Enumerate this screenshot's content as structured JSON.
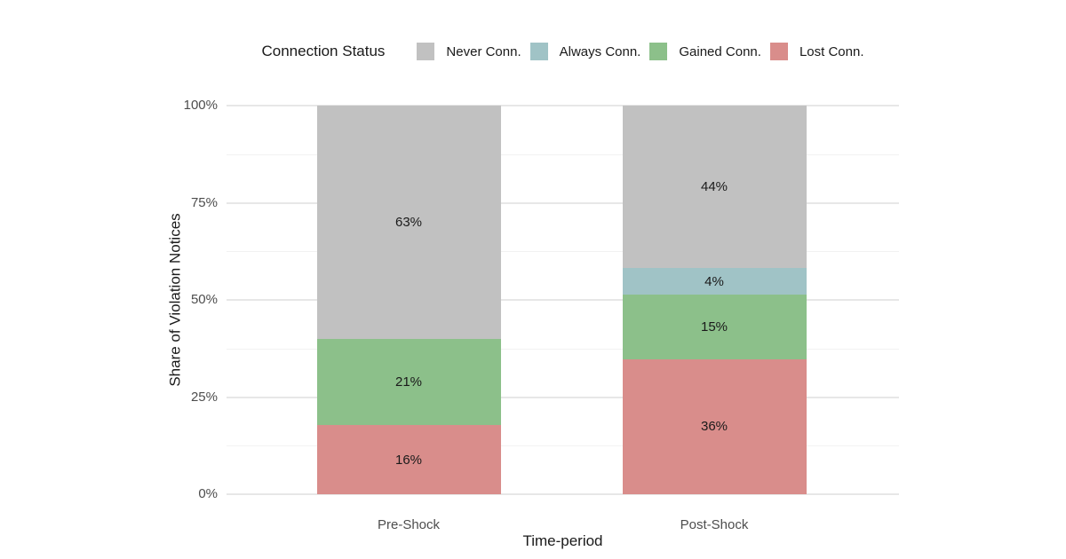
{
  "chart_data": {
    "type": "bar",
    "stacked": true,
    "units": "percent",
    "legend_title": "Connection Status",
    "legend_position": "top",
    "xlabel": "Time-period",
    "ylabel": "Share of Violation Notices",
    "categories": [
      "Pre-Shock",
      "Post-Shock"
    ],
    "series": [
      {
        "name": "Never Conn.",
        "color": "#c1c1c1",
        "values": [
          63,
          44
        ]
      },
      {
        "name": "Always Conn.",
        "color": "#a0c3c6",
        "values": [
          0,
          4
        ]
      },
      {
        "name": "Gained Conn.",
        "color": "#8cc08a",
        "values": [
          21,
          15
        ]
      },
      {
        "name": "Lost Conn.",
        "color": "#d98d8b",
        "values": [
          16,
          36
        ]
      }
    ],
    "segment_labels": [
      [
        "63%",
        "21%",
        "16%"
      ],
      [
        "44%",
        "4%",
        "15%",
        "36%"
      ]
    ],
    "label_format": "{value}%",
    "y_ticks": [
      "0%",
      "25%",
      "50%",
      "75%",
      "100%"
    ],
    "y_tick_values": [
      0,
      25,
      50,
      75,
      100
    ],
    "y_minor_tick_values": [
      12.5,
      37.5,
      62.5,
      87.5
    ],
    "ylim": [
      0,
      100
    ],
    "grid": "horizontal major and minor, no vertical"
  },
  "colors": {
    "background": "#ffffff",
    "grid_major": "#e7e7e7",
    "grid_minor": "#f2f2f2",
    "tick_label": "#4d4d4d",
    "title_text": "#1a1a1a",
    "segment_label": "#1a1a1a"
  }
}
